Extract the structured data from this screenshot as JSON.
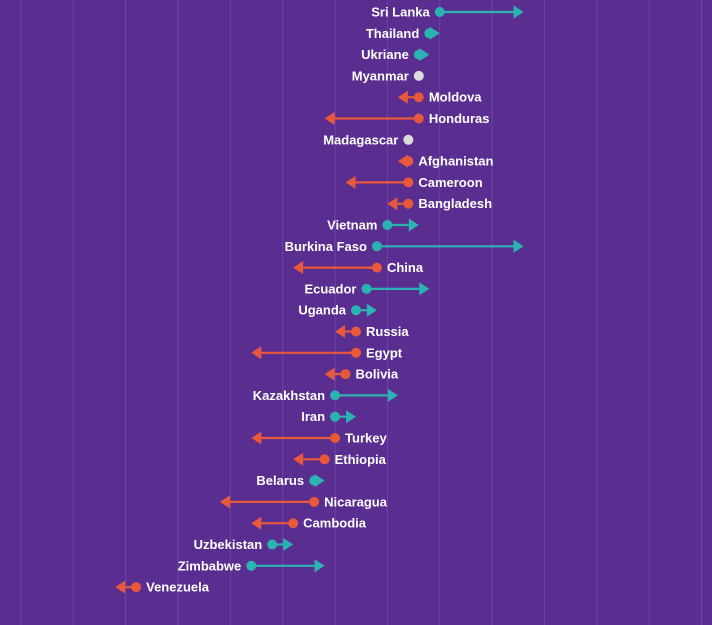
{
  "chart_data": {
    "type": "arrow-dot",
    "title": "",
    "xlabel": "",
    "ylabel": "",
    "colors": {
      "up": "#2bb3b1",
      "down": "#e8583b",
      "nochange": "#dcdcdc",
      "background": "#5a2d91",
      "grid": "#6e43a6"
    },
    "x_range": [
      -1.2,
      5.6
    ],
    "grid_step": 0.5,
    "series": [
      {
        "name": "Sri Lanka",
        "start": 3.0,
        "end": 3.8
      },
      {
        "name": "Thailand",
        "start": 2.9,
        "end": 3.0
      },
      {
        "name": "Ukriane",
        "start": 2.8,
        "end": 2.9
      },
      {
        "name": "Myanmar",
        "start": 2.8,
        "end": 2.8
      },
      {
        "name": "Moldova",
        "start": 2.8,
        "end": 2.6
      },
      {
        "name": "Honduras",
        "start": 2.8,
        "end": 1.9
      },
      {
        "name": "Madagascar",
        "start": 2.7,
        "end": 2.7
      },
      {
        "name": "Afghanistan",
        "start": 2.7,
        "end": 2.6
      },
      {
        "name": "Cameroon",
        "start": 2.7,
        "end": 2.1
      },
      {
        "name": "Bangladesh",
        "start": 2.7,
        "end": 2.5
      },
      {
        "name": "Vietnam",
        "start": 2.5,
        "end": 2.8
      },
      {
        "name": "Burkina Faso",
        "start": 2.4,
        "end": 3.8
      },
      {
        "name": "China",
        "start": 2.4,
        "end": 1.6
      },
      {
        "name": "Ecuador",
        "start": 2.3,
        "end": 2.9
      },
      {
        "name": "Uganda",
        "start": 2.2,
        "end": 2.4
      },
      {
        "name": "Russia",
        "start": 2.2,
        "end": 2.0
      },
      {
        "name": "Egypt",
        "start": 2.2,
        "end": 1.2
      },
      {
        "name": "Bolivia",
        "start": 2.1,
        "end": 1.9
      },
      {
        "name": "Kazakhstan",
        "start": 2.0,
        "end": 2.6
      },
      {
        "name": "Iran",
        "start": 2.0,
        "end": 2.2
      },
      {
        "name": "Turkey",
        "start": 2.0,
        "end": 1.2
      },
      {
        "name": "Ethiopia",
        "start": 1.9,
        "end": 1.6
      },
      {
        "name": "Belarus",
        "start": 1.8,
        "end": 1.9
      },
      {
        "name": "Nicaragua",
        "start": 1.8,
        "end": 0.9
      },
      {
        "name": "Cambodia",
        "start": 1.6,
        "end": 1.2
      },
      {
        "name": "Uzbekistan",
        "start": 1.4,
        "end": 1.6
      },
      {
        "name": "Zimbabwe",
        "start": 1.2,
        "end": 1.9
      },
      {
        "name": "Venezuela",
        "start": 0.1,
        "end": -0.1
      }
    ]
  }
}
